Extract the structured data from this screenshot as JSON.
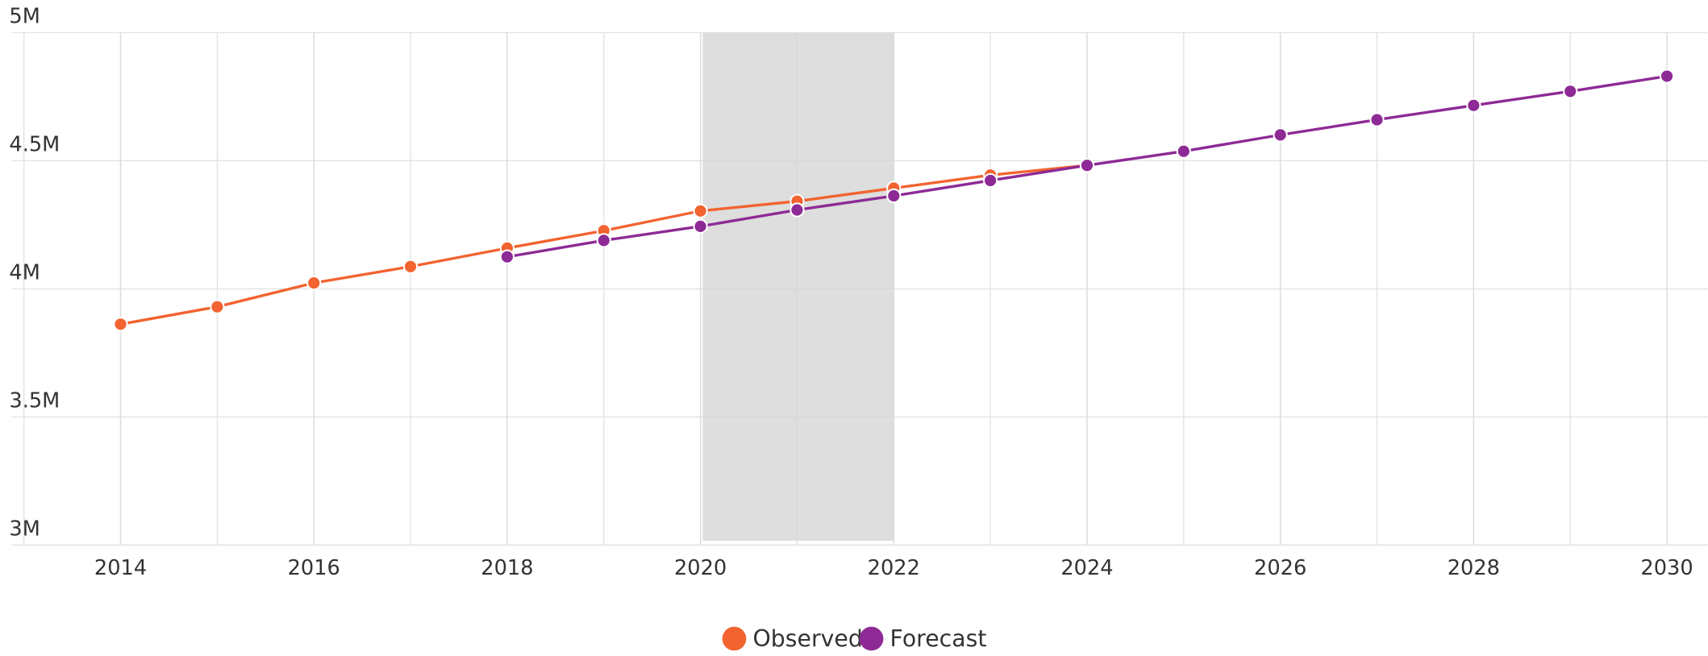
{
  "chart_data": {
    "type": "line",
    "series": [
      {
        "name": "Observed",
        "color": "#f26330",
        "x": [
          2014,
          2015,
          2016,
          2017,
          2018,
          2019,
          2020,
          2021,
          2022,
          2023,
          2024
        ],
        "values": [
          3862000,
          3930000,
          4023000,
          4087000,
          4159000,
          4227000,
          4304000,
          4342000,
          4393000,
          4444000,
          4482000
        ]
      },
      {
        "name": "Forecast",
        "color": "#8e2a96",
        "x": [
          2018,
          2019,
          2020,
          2021,
          2022,
          2023,
          2024,
          2025,
          2026,
          2027,
          2028,
          2029,
          2030
        ],
        "values": [
          4125000,
          4189000,
          4244000,
          4308000,
          4363000,
          4423000,
          4482000,
          4537000,
          4601000,
          4660000,
          4716000,
          4771000,
          4830000
        ]
      }
    ],
    "xlim": [
      2012.87,
      2030.42
    ],
    "xticks": [
      2014,
      2016,
      2018,
      2020,
      2022,
      2024,
      2026,
      2028,
      2030
    ],
    "x_minor_step": 1,
    "ylim": [
      3000000,
      5000000
    ],
    "yticks": [
      {
        "value": 3000000,
        "label": "3M"
      },
      {
        "value": 3500000,
        "label": "3.5M"
      },
      {
        "value": 4000000,
        "label": "4M"
      },
      {
        "value": 4500000,
        "label": "4.5M"
      },
      {
        "value": 5000000,
        "label": "5M"
      }
    ],
    "shaded_range": [
      2020,
      2022
    ],
    "grid": true,
    "legend": "bottom"
  }
}
